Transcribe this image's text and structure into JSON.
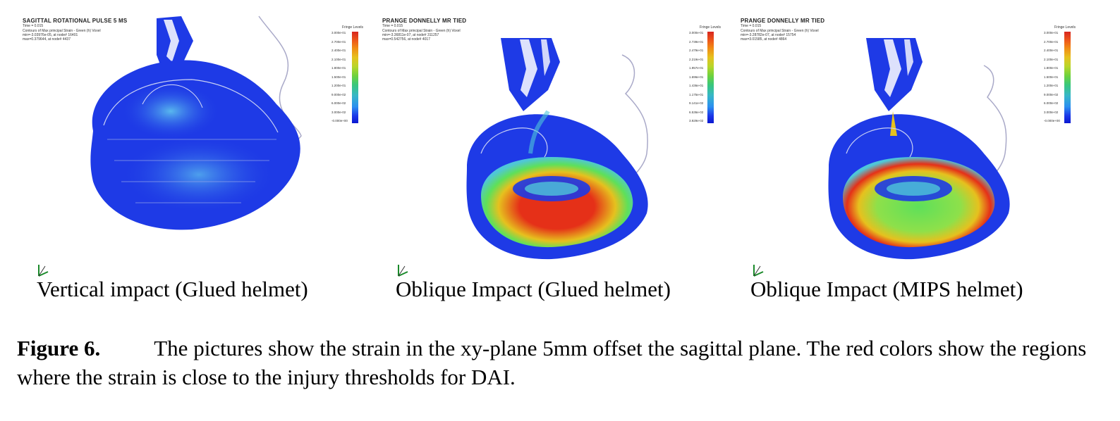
{
  "panels": [
    {
      "title": "SAGITTAL ROTATIONAL PULSE 5 MS",
      "meta": [
        "Time =     0.015",
        "Contours of Max principal Strain - Green (h) Voxel",
        "min=-3.03976e-05, at node# 16401",
        "max=0.379644, at node# 4437"
      ],
      "caption": "Vertical impact (Glued helmet)",
      "strain_level": "low"
    },
    {
      "title": "PRANGE DONNELLY MR TIED",
      "meta": [
        "Time =     0.015",
        "Contours of Max principal Strain - Green (h) Voxel",
        "min=-3.36811e-07, at node# 311257",
        "max=0.542756, at node# 4017"
      ],
      "caption": "Oblique Impact (Glued helmet)",
      "strain_level": "high"
    },
    {
      "title": "PRANGE DONNELLY MR TIED",
      "meta": [
        "Time =     0.015",
        "Contours of Max principal Strain - Green (h) Voxel",
        "min=-3.28782e-07, at node# 15754",
        "max=3.01585, at node# 4864"
      ],
      "caption": "Oblique Impact (MIPS helmet)",
      "strain_level": "medium"
    }
  ],
  "legends": [
    {
      "title": "Fringe Levels",
      "labels": [
        "3.000e-01",
        "2.700e-01",
        "2.400e-01",
        "2.100e-01",
        "1.800e-01",
        "1.500e-01",
        "1.200e-01",
        "9.000e-02",
        "6.000e-02",
        "3.000e-02",
        "-0.000e+00"
      ]
    },
    {
      "title": "Fringe Levels",
      "labels": [
        "3.000e-01",
        "2.739e-01",
        "2.479e-01",
        "2.219e-01",
        "1.957e-01",
        "1.696e-01",
        "1.436e-01",
        "1.175e-01",
        "9.141e-02",
        "6.536e-02",
        "3.929e-02"
      ]
    },
    {
      "title": "Fringe Levels",
      "labels": [
        "3.000e-01",
        "2.700e-01",
        "2.400e-01",
        "2.100e-01",
        "1.800e-01",
        "1.500e-01",
        "1.200e-01",
        "9.000e-02",
        "6.000e-02",
        "3.000e-02",
        "-0.000e+00"
      ]
    }
  ],
  "figure": {
    "label": "Figure 6.",
    "text": "The pictures show the strain in the xy-plane 5mm offset the sagittal plane. The red colors show the regions where the strain is close to the injury thresholds for DAI."
  },
  "colors": {
    "tissue_blue": "#1e3ae6",
    "strain_red": "#e53018",
    "strain_green": "#5ee05a",
    "strain_cyan": "#4fc6d8",
    "face_outline": "#a9a9c8"
  }
}
